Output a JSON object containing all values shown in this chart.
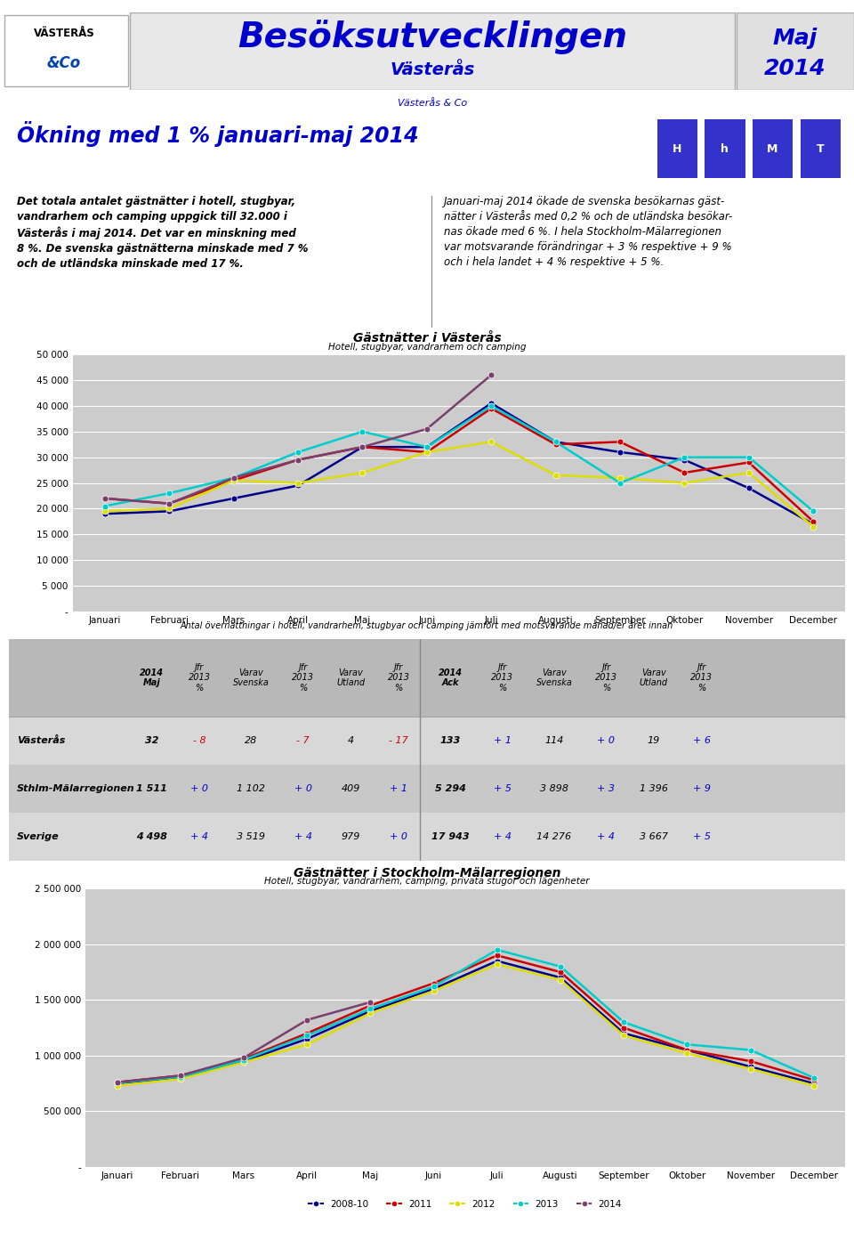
{
  "header_title": "Besöksutvecklingen",
  "header_subtitle": "Västerås",
  "header_sub2": "Västerås & Co",
  "header_month": "Maj",
  "header_year": "2014",
  "section_title": "Ökning med 1 % januari-maj 2014",
  "left_text": "Det totala antalet gästnätter i hotell, stugbyar,\nvandrarhem och camping uppgick till 32.000 i\nVästerås i maj 2014. Det var en minskning med\n8 %. De svenska gästnätterna minskade med 7 %\noch de utländska minskade med 17 %.",
  "right_text": "Januari-maj 2014 ökade de svenska besökarnas gäst-\nnätter i Västerås med 0,2 % och de utländska besökar-\nnas ökade med 6 %. I hela Stockholm-Mälarregionen\nvar motsvarande förändringar + 3 % respektive + 9 %\noch i hela landet + 4 % respektive + 5 %.",
  "chart1_title": "Gästnätter i Västerås",
  "chart1_subtitle": "Hotell, stugbyar, vandrarhem och camping",
  "months": [
    "Januari",
    "Februari",
    "Mars",
    "April",
    "Maj",
    "Juni",
    "Juli",
    "Augusti",
    "September",
    "Oktober",
    "November",
    "December"
  ],
  "chart1_yticks": [
    0,
    5000,
    10000,
    15000,
    20000,
    25000,
    30000,
    35000,
    40000,
    45000,
    50000
  ],
  "chart1_ytick_labels": [
    "-",
    "5 000",
    "10 000",
    "15 000",
    "20 000",
    "25 000",
    "30 000",
    "35 000",
    "40 000",
    "45 000",
    "50 000"
  ],
  "chart1_series": {
    "2008-10": {
      "color": "#00008B",
      "values": [
        19000,
        19500,
        22000,
        24500,
        32000,
        32000,
        40500,
        33000,
        31000,
        29500,
        24000,
        17000
      ]
    },
    "2011": {
      "color": "#CC0000",
      "values": [
        22000,
        21000,
        25500,
        29500,
        32000,
        31000,
        39500,
        32500,
        33000,
        27000,
        29000,
        17500
      ]
    },
    "2012": {
      "color": "#DDDD00",
      "values": [
        19500,
        20000,
        25500,
        25000,
        27000,
        31000,
        33000,
        26500,
        26000,
        25000,
        27000,
        16500
      ]
    },
    "2013": {
      "color": "#00CCCC",
      "values": [
        20500,
        23000,
        26000,
        31000,
        35000,
        32000,
        40000,
        33000,
        25000,
        30000,
        30000,
        19500
      ]
    },
    "2014": {
      "color": "#7B3F6E",
      "values": [
        22000,
        21000,
        26000,
        29500,
        32000,
        35500,
        46000,
        null,
        null,
        null,
        null,
        null
      ]
    }
  },
  "legend_order": [
    "2008-10",
    "2011",
    "2012",
    "2013",
    "2014"
  ],
  "table_caption": "Antal övernattningar i hotell, vandrarhem, stugbyar och camping jämfört med motsvarande månad/er året innan",
  "table_col_headers": [
    "",
    "2014\nMaj",
    "Jfr\n2013\n%",
    "Varav\nSvenska",
    "Jfr\n2013\n%",
    "Varav\nUtland",
    "Jfr\n2013\n%",
    "2014\nAck",
    "Jfr\n2013\n%",
    "Varav\nSvenska",
    "Jfr\n2013\n%",
    "Varav\nUtland",
    "Jfr\n2013\n%"
  ],
  "table_rows": [
    [
      "Västerås",
      "32",
      "- 8",
      "28",
      "- 7",
      "4",
      "- 17",
      "133",
      "+ 1",
      "114",
      "+ 0",
      "19",
      "+ 6"
    ],
    [
      "Sthlm-Mälarregionen",
      "1 511",
      "+ 0",
      "1 102",
      "+ 0",
      "409",
      "+ 1",
      "5 294",
      "+ 5",
      "3 898",
      "+ 3",
      "1 396",
      "+ 9"
    ],
    [
      "Sverige",
      "4 498",
      "+ 4",
      "3 519",
      "+ 4",
      "979",
      "+ 0",
      "17 943",
      "+ 4",
      "14 276",
      "+ 4",
      "3 667",
      "+ 5"
    ]
  ],
  "chart2_title": "Gästnätter i Stockholm-Mälarregionen",
  "chart2_subtitle": "Hotell, stugbyar, vandrarhem, camping, privata stugor och lägenheter",
  "chart2_yticks": [
    0,
    500000,
    1000000,
    1500000,
    2000000,
    2500000
  ],
  "chart2_ytick_labels": [
    "-",
    "500 000",
    "1 000 000",
    "1 500 000",
    "2 000 000",
    "2 500 000"
  ],
  "chart2_series": {
    "2008-10": {
      "color": "#00008B",
      "values": [
        750000,
        800000,
        950000,
        1150000,
        1400000,
        1600000,
        1850000,
        1700000,
        1200000,
        1050000,
        900000,
        750000
      ]
    },
    "2011": {
      "color": "#CC0000",
      "values": [
        760000,
        820000,
        970000,
        1200000,
        1450000,
        1650000,
        1900000,
        1750000,
        1250000,
        1050000,
        950000,
        780000
      ]
    },
    "2012": {
      "color": "#DDDD00",
      "values": [
        730000,
        790000,
        940000,
        1100000,
        1380000,
        1580000,
        1820000,
        1680000,
        1180000,
        1020000,
        880000,
        730000
      ]
    },
    "2013": {
      "color": "#00CCCC",
      "values": [
        755000,
        810000,
        960000,
        1180000,
        1420000,
        1620000,
        1950000,
        1800000,
        1300000,
        1100000,
        1050000,
        800000
      ]
    },
    "2014": {
      "color": "#7B3F6E",
      "values": [
        760000,
        820000,
        980000,
        1320000,
        1480000,
        null,
        null,
        null,
        null,
        null,
        null,
        null
      ]
    }
  },
  "blue_color": "#0000CC",
  "chart_bg": "#cccccc"
}
